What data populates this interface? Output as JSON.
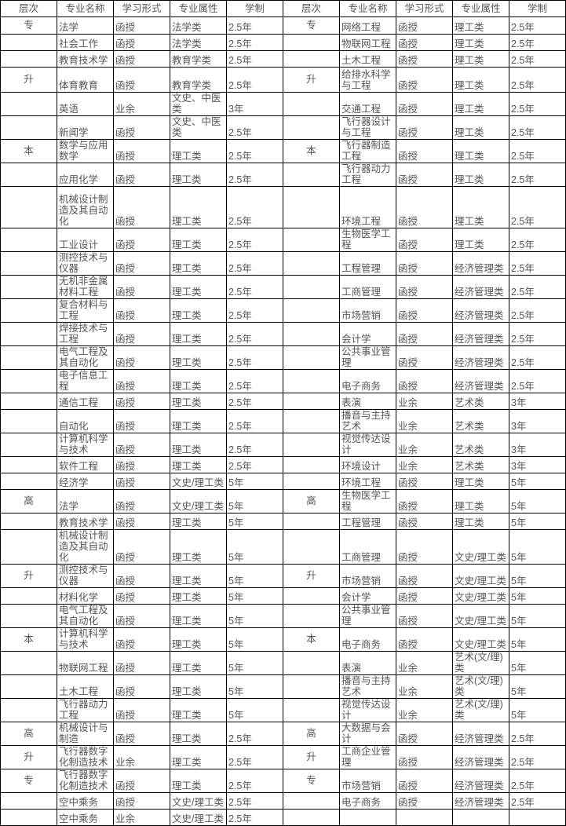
{
  "colors": {
    "text": "#555555",
    "border": "#000000",
    "background": "#ffffff"
  },
  "table": {
    "headers": [
      "层次",
      "专业名称",
      "学习形式",
      "专业属性",
      "学制"
    ],
    "rows": [
      [
        "专",
        "法学",
        "函授",
        "法学类",
        "2.5年",
        "专",
        "网络工程",
        "函授",
        "理工类",
        "2.5年"
      ],
      [
        "",
        "社会工作",
        "函授",
        "法学类",
        "2.5年",
        "",
        "物联网工程",
        "函授",
        "理工类",
        "2.5年"
      ],
      [
        "",
        "教育技术学",
        "函授",
        "教育学类",
        "2.5年",
        "",
        "土木工程",
        "函授",
        "理工类",
        "2.5年"
      ],
      [
        "升",
        "体育教育",
        "函授",
        "教育学类",
        "2.5年",
        "升",
        "给排水科学与工程",
        "函授",
        "理工类",
        "2.5年"
      ],
      [
        "",
        "英语",
        "业余",
        "文史、中医类",
        "3年",
        "",
        "交通工程",
        "函授",
        "理工类",
        "2.5年"
      ],
      [
        "",
        "新闻学",
        "函授",
        "文史、中医类",
        "2.5年",
        "",
        "飞行器设计与工程",
        "函授",
        "理工类",
        "2.5年"
      ],
      [
        "本",
        "数学与应用数学",
        "函授",
        "理工类",
        "2.5年",
        "本",
        "飞行器制造工程",
        "函授",
        "理工类",
        "2.5年"
      ],
      [
        "",
        "应用化学",
        "函授",
        "理工类",
        "2.5年",
        "",
        "飞行器动力工程",
        "函授",
        "理工类",
        "2.5年"
      ],
      [
        "",
        "机械设计制造及其自动化",
        "函授",
        "理工类",
        "2.5年",
        "",
        "环境工程",
        "函授",
        "理工类",
        "2.5年"
      ],
      [
        "",
        "工业设计",
        "函授",
        "理工类",
        "2.5年",
        "",
        "生物医学工程",
        "函授",
        "理工类",
        "2.5年"
      ],
      [
        "",
        "测控技术与仪器",
        "函授",
        "理工类",
        "2.5年",
        "",
        "工程管理",
        "函授",
        "经济管理类",
        "2.5年"
      ],
      [
        "",
        "无机非金属材料工程",
        "函授",
        "理工类",
        "2.5年",
        "",
        "工商管理",
        "函授",
        "经济管理类",
        "2.5年"
      ],
      [
        "",
        "复合材料与工程",
        "函授",
        "理工类",
        "2.5年",
        "",
        "市场营销",
        "函授",
        "经济管理类",
        "2.5年"
      ],
      [
        "",
        "焊接技术与工程",
        "函授",
        "理工类",
        "2.5年",
        "",
        "会计学",
        "函授",
        "经济管理类",
        "2.5年"
      ],
      [
        "",
        "电气工程及其自动化",
        "函授",
        "理工类",
        "2.5年",
        "",
        "公共事业管理",
        "函授",
        "经济管理类",
        "2.5年"
      ],
      [
        "",
        "电子信息工程",
        "函授",
        "理工类",
        "2.5年",
        "",
        "电子商务",
        "函授",
        "经济管理类",
        "2.5年"
      ],
      [
        "",
        "通信工程",
        "函授",
        "理工类",
        "2.5年",
        "",
        "表演",
        "业余",
        "艺术类",
        "3年"
      ],
      [
        "",
        "自动化",
        "函授",
        "理工类",
        "2.5年",
        "",
        "播音与主持艺术",
        "业余",
        "艺术类",
        "3年"
      ],
      [
        "",
        "计算机科学与技术",
        "函授",
        "理工类",
        "2.5年",
        "",
        "视觉传达设计",
        "业余",
        "艺术类",
        "3年"
      ],
      [
        "",
        "软件工程",
        "函授",
        "理工类",
        "2.5年",
        "",
        "环境设计",
        "业余",
        "艺术类",
        "3年"
      ],
      [
        "",
        "经济学",
        "函授",
        "文史/理工类",
        "5年",
        "",
        "环境工程",
        "函授",
        "理工类",
        "5年"
      ],
      [
        "高",
        "法学",
        "函授",
        "文史/理工类",
        "5年",
        "高",
        "生物医学工程",
        "函授",
        "理工类",
        "5年"
      ],
      [
        "",
        "教育技术学",
        "函授",
        "理工类",
        "5年",
        "",
        "工程管理",
        "函授",
        "理工类",
        "5年"
      ],
      [
        "",
        "机械设计制造及其自动化",
        "函授",
        "理工类",
        "5年",
        "",
        "工商管理",
        "函授",
        "文史/理工类",
        "5年"
      ],
      [
        "升",
        "测控技术与仪器",
        "函授",
        "理工类",
        "5年",
        "升",
        "市场营销",
        "函授",
        "文史/理工类",
        "5年"
      ],
      [
        "",
        "材料化学",
        "函授",
        "理工类",
        "5年",
        "",
        "会计学",
        "函授",
        "文史/理工类",
        "5年"
      ],
      [
        "",
        "电气工程及其自动化",
        "函授",
        "理工类",
        "5年",
        "",
        "公共事业管理",
        "函授",
        "文史/理工类",
        "5年"
      ],
      [
        "本",
        "计算机科学与技术",
        "函授",
        "理工类",
        "5年",
        "本",
        "电子商务",
        "函授",
        "文史/理工类",
        "5年"
      ],
      [
        "",
        "物联网工程",
        "函授",
        "理工类",
        "5年",
        "",
        "表演",
        "业余",
        "艺术(文/理)类",
        "5年"
      ],
      [
        "",
        "土木工程",
        "函授",
        "理工类",
        "5年",
        "",
        "播音与主持艺术",
        "业余",
        "艺术(文/理)类",
        "5年"
      ],
      [
        "",
        "飞行器动力工程",
        "函授",
        "理工类",
        "5年",
        "",
        "视觉传达设计",
        "业余",
        "艺术(文/理)类",
        "5年"
      ],
      [
        "高",
        "机械设计与制造",
        "函授",
        "理工类",
        "2.5年",
        "高",
        "大数据与会计",
        "函授",
        "经济管理类",
        "2.5年"
      ],
      [
        "升",
        "飞行器数字化制造技术",
        "业余",
        "理工类",
        "2.5年",
        "升",
        "工商企业管理",
        "函授",
        "经济管理类",
        "2.5年"
      ],
      [
        "专",
        "飞行器数字化制造技术",
        "函授",
        "理工类",
        "2.5年",
        "专",
        "市场营销",
        "函授",
        "经济管理类",
        "2.5年"
      ],
      [
        "",
        "空中乘务",
        "函授",
        "文史/理工类",
        "2.5年",
        "",
        "电子商务",
        "函授",
        "经济管理类",
        "2.5年"
      ],
      [
        "",
        "空中乘务",
        "业余",
        "文史/理工类",
        "2.5年",
        "",
        "",
        "",
        "",
        ""
      ]
    ]
  }
}
